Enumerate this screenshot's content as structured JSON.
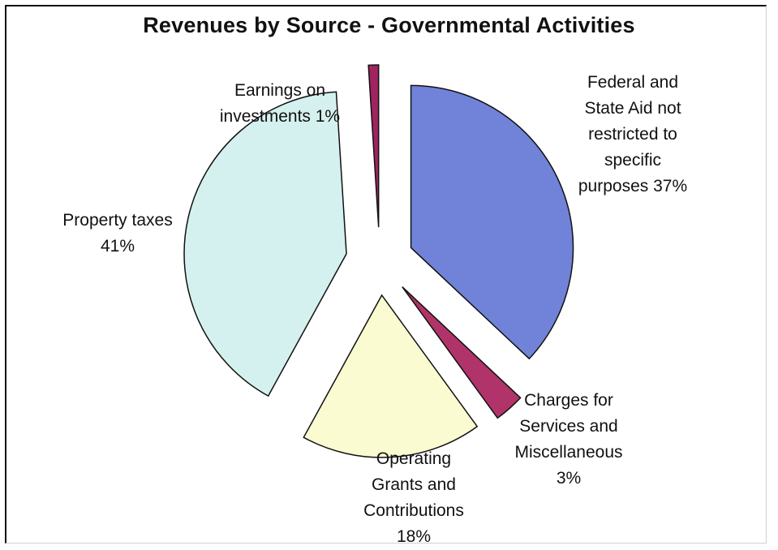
{
  "chart_data": {
    "type": "pie",
    "title": "Revenues by Source - Governmental Activities",
    "slices": [
      {
        "label": "Federal and\nState Aid not\nrestricted to\nspecific\npurposes 37%",
        "value": 37,
        "color": "#7083d8"
      },
      {
        "label": "Charges for\nServices and\nMiscellaneous\n3%",
        "value": 3,
        "color": "#b0346a"
      },
      {
        "label": "Operating\nGrants and\nContributions\n18%",
        "value": 18,
        "color": "#fbfbd2"
      },
      {
        "label": "Property taxes\n41%",
        "value": 41,
        "color": "#d5f1ef"
      },
      {
        "label": "Earnings on\ninvestments 1%",
        "value": 1,
        "color": "#a02460"
      }
    ],
    "legend": "none"
  }
}
